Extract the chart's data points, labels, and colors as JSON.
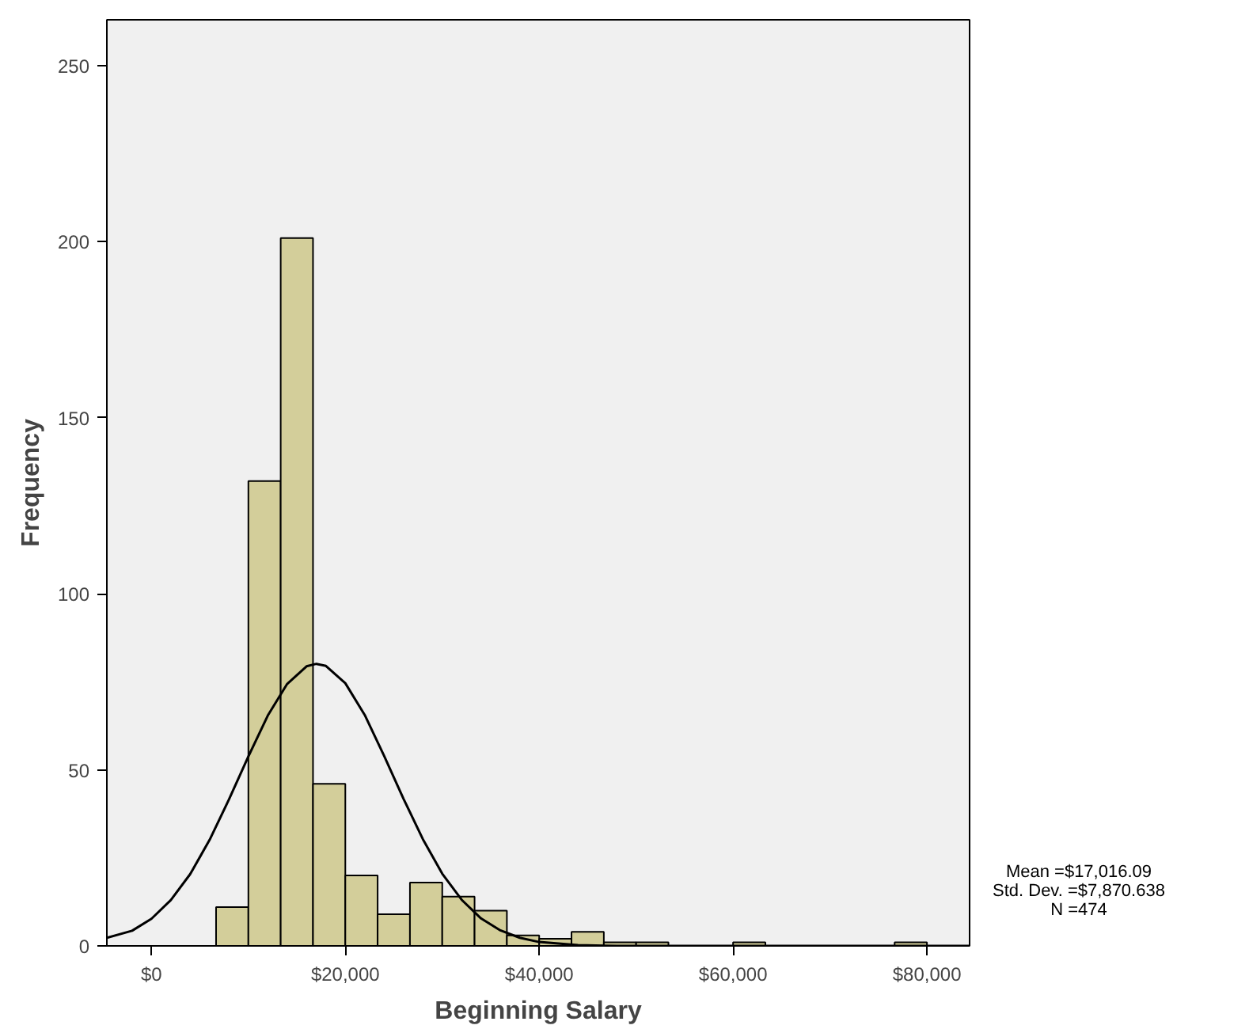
{
  "chart_data": {
    "type": "histogram",
    "xlabel": "Beginning Salary",
    "ylabel": "Frequency",
    "bins": [
      6667,
      10000,
      13333,
      16667,
      20000,
      23333,
      26667,
      30000,
      33333,
      36667,
      40000,
      43333,
      46667,
      50000,
      53333,
      56667,
      60000,
      63333,
      66667,
      70000,
      73333,
      76667,
      80000
    ],
    "values": [
      11,
      132,
      201,
      46,
      20,
      9,
      18,
      14,
      10,
      3,
      2,
      4,
      1,
      1,
      0,
      0,
      1,
      0,
      0,
      0,
      0,
      1
    ],
    "color": "#d3ce9a",
    "series": [
      {
        "type": "line",
        "color": "#000000",
        "x": [
          -4600,
          -2000,
          0,
          2000,
          4000,
          6000,
          8000,
          10000,
          12000,
          14000,
          16000,
          17016,
          18000,
          20000,
          22000,
          24000,
          26000,
          28000,
          30000,
          32000,
          34000,
          36000,
          38000,
          40000,
          44000,
          48000,
          60000,
          84400
        ],
        "values": [
          2.3,
          4.3,
          7.7,
          13.0,
          20.4,
          30.1,
          41.6,
          53.8,
          65.4,
          74.4,
          79.4,
          80.1,
          79.5,
          74.6,
          65.6,
          54.0,
          41.8,
          30.3,
          20.5,
          13.1,
          7.8,
          4.4,
          2.3,
          1.1,
          0.2,
          0.0,
          0.0,
          0.0
        ]
      }
    ],
    "xlim": [
      -4600,
      84400
    ],
    "ylim": [
      0,
      263
    ],
    "xticks": [
      {
        "value": 0,
        "label": "$0"
      },
      {
        "value": 20000,
        "label": "$20,000"
      },
      {
        "value": 40000,
        "label": "$40,000"
      },
      {
        "value": 60000,
        "label": "$60,000"
      },
      {
        "value": 80000,
        "label": "$80,000"
      }
    ],
    "yticks": [
      0,
      50,
      100,
      150,
      200,
      250
    ],
    "grid": false,
    "annotations": [
      "Mean =$17,016.09",
      "Std. Dev. =$7,870.638",
      "N =474"
    ]
  }
}
